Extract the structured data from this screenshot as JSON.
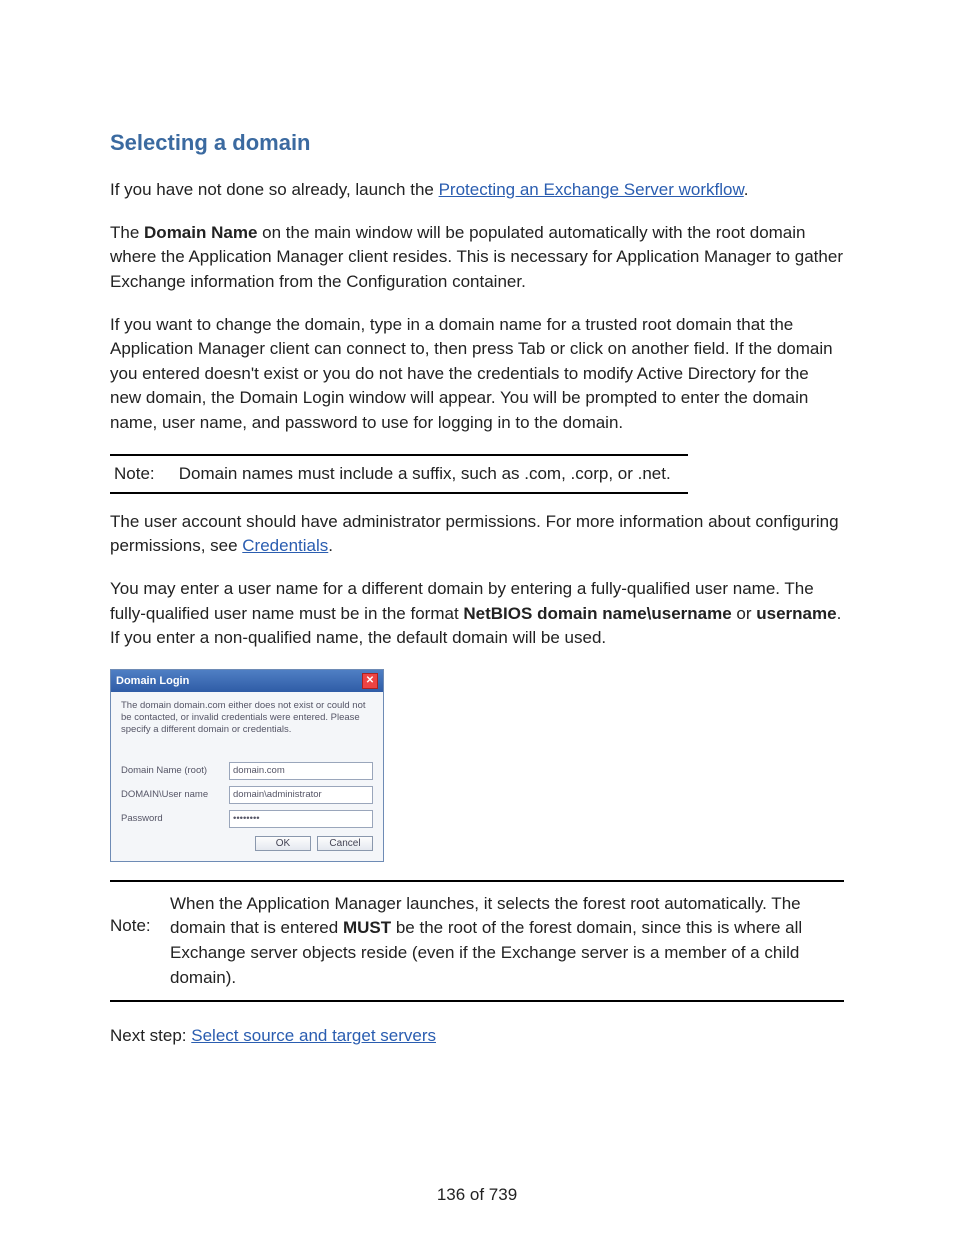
{
  "colors": {
    "heading": "#3b6aa0",
    "link": "#2a5db0",
    "text": "#222222",
    "dlg_title_grad_top": "#4f7fc4",
    "dlg_title_grad_bot": "#2f5ca6",
    "dlg_border": "#6e8bb5",
    "dlg_bg": "#f4f6f9"
  },
  "heading": "Selecting a domain",
  "p1": {
    "pre": "If you have not done so already, launch the ",
    "link": "Protecting an Exchange Server workflow",
    "post": "."
  },
  "p2": {
    "pre": "The ",
    "bold": "Domain Name",
    "post": " on the main window will be populated automatically with the root domain where the Application Manager client resides. This is necessary for Application Manager to gather Exchange information from the Configuration container."
  },
  "p3": "If you want to change the domain, type in a domain name for a trusted root domain that the Application Manager client can connect to, then press Tab or click on another field. If the domain you entered doesn't exist or you do not have the credentials to modify Active Directory for the new domain, the Domain Login window will appear. You will be prompted to enter the domain name, user name, and password to use for logging in to the domain.",
  "note1": {
    "label": "Note:",
    "text": "Domain names must include a suffix, such as .com, .corp, or .net."
  },
  "p4": {
    "pre": "The user account should have administrator permissions. For more information about configuring permissions, see ",
    "link": "Credentials",
    "post": "."
  },
  "p5": {
    "pre": "You may enter a user name for a different domain by entering a fully-qualified user name. The fully-qualified user name must be in the format ",
    "bold1": "NetBIOS domain name\\username",
    "mid": " or ",
    "bold2": "username",
    "post": ". If you enter a non-qualified name, the default domain will be used."
  },
  "dialog": {
    "title": "Domain Login",
    "message": "The domain domain.com either does not exist or could not be contacted, or invalid credentials were entered. Please specify a different domain or credentials.",
    "f_domain_label": "Domain Name (root)",
    "f_domain_value": "domain.com",
    "f_user_label": "DOMAIN\\User name",
    "f_user_value": "domain\\administrator",
    "f_pass_label": "Password",
    "f_pass_value": "••••••••",
    "ok": "OK",
    "cancel": "Cancel"
  },
  "note2": {
    "label": "Note:",
    "pre": "When the Application Manager launches, it selects the forest root automatically. The domain that is entered ",
    "bold": "MUST",
    "post": " be the root of the forest domain, since this is where all Exchange server objects reside (even if the Exchange server is a member of a child domain)."
  },
  "next": {
    "pre": "Next step: ",
    "link": "Select source and target servers"
  },
  "pagenum": "136 of 739"
}
